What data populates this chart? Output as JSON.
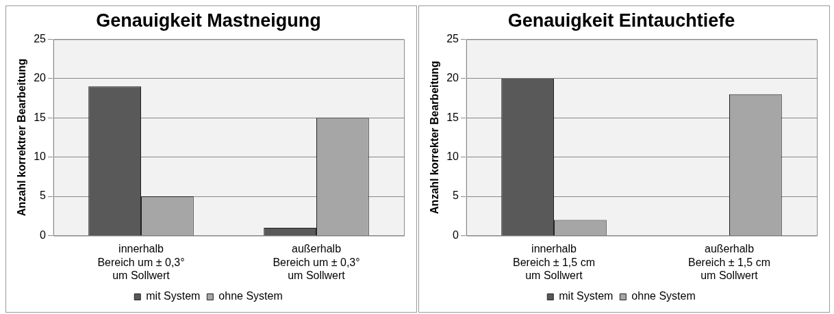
{
  "chart_data": [
    {
      "type": "bar",
      "title": "Genauigkeit Mastneigung",
      "ylabel": "Anzahl korrektrer Bearbeitung",
      "categories": [
        "innerhalb\nBereich um ± 0,3°\num Sollwert",
        "außerhalb\nBereich um ± 0,3°\num Sollwert"
      ],
      "series": [
        {
          "name": "mit System",
          "color": "#595959",
          "values": [
            19,
            1
          ]
        },
        {
          "name": "ohne System",
          "color": "#a6a6a6",
          "values": [
            5,
            15
          ]
        }
      ],
      "ylim": [
        0,
        25
      ],
      "yticks": [
        0,
        5,
        10,
        15,
        20,
        25
      ],
      "grid": "y",
      "legend": "bottom"
    },
    {
      "type": "bar",
      "title": "Genauigkeit Eintauchtiefe",
      "ylabel": "Anzahl korrekter Bearbeitung",
      "categories": [
        "innerhalb\nBereich ± 1,5 cm\num Sollwert",
        "außerhalb\nBereich ± 1,5 cm\num Sollwert"
      ],
      "series": [
        {
          "name": "mit System",
          "color": "#595959",
          "values": [
            20,
            0
          ]
        },
        {
          "name": "ohne System",
          "color": "#a6a6a6",
          "values": [
            2,
            18
          ]
        }
      ],
      "ylim": [
        0,
        25
      ],
      "yticks": [
        0,
        5,
        10,
        15,
        20,
        25
      ],
      "grid": "y",
      "legend": "bottom"
    }
  ]
}
